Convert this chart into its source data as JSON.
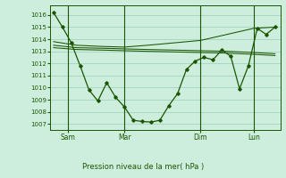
{
  "background_color": "#ceeedd",
  "grid_color": "#99ccbb",
  "line_color": "#1a5500",
  "xlabel": "Pression niveau de la mer( hPa )",
  "ylim": [
    1006.5,
    1016.8
  ],
  "yticks": [
    1007,
    1008,
    1009,
    1010,
    1011,
    1012,
    1013,
    1014,
    1015,
    1016
  ],
  "xtick_labels": [
    "Sam",
    "Mar",
    "Dim",
    "Lun"
  ],
  "xtick_positions": [
    10,
    42,
    85,
    115
  ],
  "vline_positions": [
    10,
    42,
    85,
    115
  ],
  "series1_x": [
    2,
    7,
    12,
    17,
    22,
    27,
    32,
    37,
    42,
    47,
    52,
    57,
    62,
    67,
    72,
    77,
    82,
    87,
    92,
    97,
    102,
    107,
    112,
    117,
    122,
    127
  ],
  "series1_y": [
    1016.2,
    1015.0,
    1013.7,
    1011.8,
    1009.8,
    1008.9,
    1010.4,
    1009.2,
    1008.4,
    1007.3,
    1007.2,
    1007.15,
    1007.3,
    1008.5,
    1009.5,
    1011.5,
    1012.2,
    1012.5,
    1012.3,
    1013.1,
    1012.6,
    1009.9,
    1011.8,
    1014.9,
    1014.4,
    1015.0
  ],
  "series2_x": [
    2,
    15,
    30,
    42,
    55,
    70,
    85,
    100,
    115,
    127
  ],
  "series2_y": [
    1013.8,
    1013.5,
    1013.4,
    1013.35,
    1013.5,
    1013.7,
    1013.9,
    1014.4,
    1014.9,
    1015.0
  ],
  "series3_x": [
    2,
    15,
    30,
    42,
    55,
    70,
    85,
    100,
    115,
    127
  ],
  "series3_y": [
    1013.5,
    1013.3,
    1013.25,
    1013.2,
    1013.15,
    1013.1,
    1013.05,
    1013.0,
    1012.9,
    1012.8
  ],
  "series4_x": [
    2,
    15,
    30,
    42,
    55,
    70,
    85,
    100,
    115,
    127
  ],
  "series4_y": [
    1013.3,
    1013.15,
    1013.1,
    1013.05,
    1013.0,
    1012.95,
    1012.9,
    1012.85,
    1012.75,
    1012.65
  ],
  "xlim": [
    0,
    130
  ]
}
